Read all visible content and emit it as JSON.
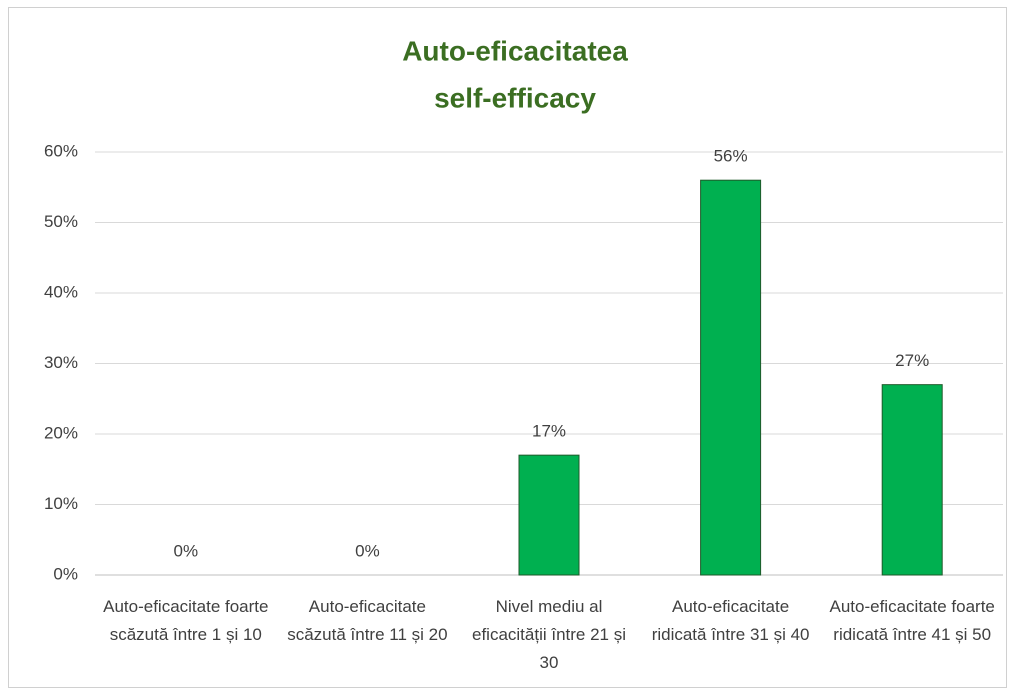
{
  "chart_data": {
    "type": "bar",
    "title": [
      "Auto-eficacitatea",
      "self-efficacy"
    ],
    "categories": [
      "Auto-eficacitate foarte scăzută între 1 și 10",
      "Auto-eficacitate scăzută între 11 și 20",
      "Nivel mediu al eficacității între 21 și 30",
      "Auto-eficacitate ridicată între 31 și 40",
      "Auto-eficacitate foarte ridicată între 41 și 50"
    ],
    "values": [
      0,
      0,
      17,
      56,
      27
    ],
    "value_labels": [
      "0%",
      "0%",
      "17%",
      "56%",
      "27%"
    ],
    "color": "#00b050",
    "ylim": [
      0,
      60
    ],
    "yticks": [
      {
        "value": 0,
        "label": "0%"
      },
      {
        "value": 10,
        "label": "10%"
      },
      {
        "value": 20,
        "label": "20%"
      },
      {
        "value": 30,
        "label": "30%"
      },
      {
        "value": 40,
        "label": "40%"
      },
      {
        "value": 50,
        "label": "50%"
      },
      {
        "value": 60,
        "label": "60%"
      }
    ],
    "grid": true
  }
}
